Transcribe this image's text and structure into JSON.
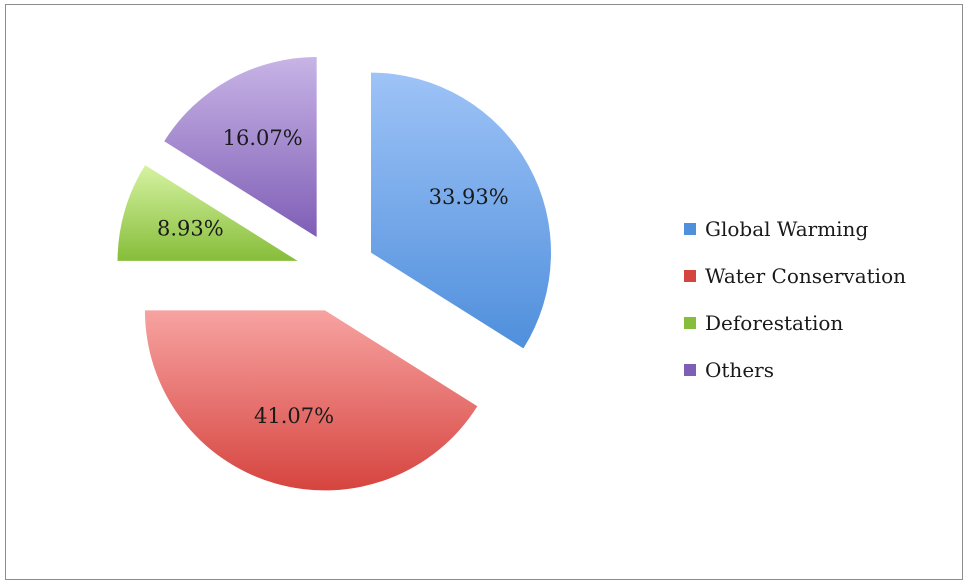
{
  "chart_data": {
    "type": "pie",
    "title": "",
    "legend_position": "right",
    "slices": [
      {
        "name": "Global Warming",
        "value": 33.93,
        "label": "33.93%",
        "color": "#4f8fdc",
        "color_light": "#9ec3f7"
      },
      {
        "name": "Water Conservation",
        "value": 41.07,
        "label": "41.07%",
        "color": "#d6443f",
        "color_light": "#f7a3a1"
      },
      {
        "name": "Deforestation",
        "value": 8.93,
        "label": "8.93%",
        "color": "#86bd3a",
        "color_light": "#d6f3a2"
      },
      {
        "name": "Others",
        "value": 16.07,
        "label": "16.07%",
        "color": "#7f5eb6",
        "color_light": "#c8b4e6"
      }
    ]
  }
}
